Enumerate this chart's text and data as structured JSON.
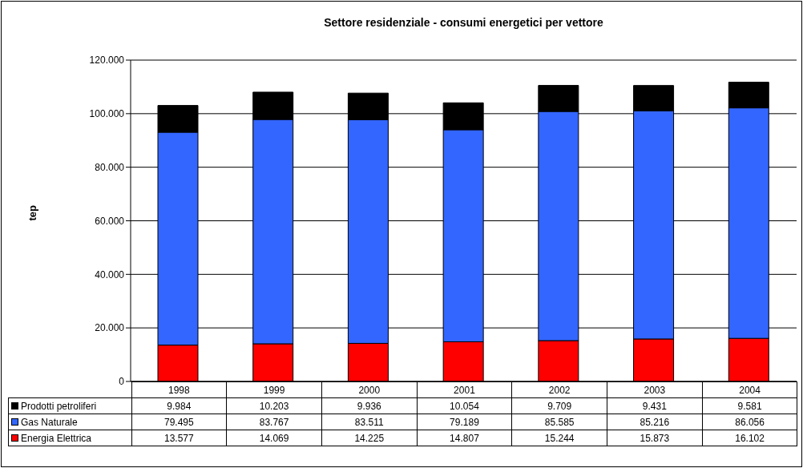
{
  "chart_data": {
    "type": "bar",
    "title": "Settore residenziale - consumi energetici per vettore",
    "ylabel": "tep",
    "categories": [
      "1998",
      "1999",
      "2000",
      "2001",
      "2002",
      "2003",
      "2004"
    ],
    "stacked": true,
    "grid": "y",
    "legend": "bottom",
    "ylim": [
      0,
      120000
    ],
    "yticks": [
      0,
      {
        "value": 20000,
        "label": "20.000"
      },
      {
        "value": 40000,
        "label": "40.000"
      },
      {
        "value": 60000,
        "label": "60.000"
      },
      {
        "value": 80000,
        "label": "80.000"
      },
      {
        "value": 100000,
        "label": "100.000"
      },
      {
        "value": 120000,
        "label": "120.000"
      }
    ],
    "series": [
      {
        "name": "Energia Elettrica",
        "color": "#ff0000",
        "values": [
          13577,
          14069,
          14225,
          14807,
          15244,
          15873,
          16102
        ],
        "value_labels": [
          "13.577",
          "14.069",
          "14.225",
          "14.807",
          "15.244",
          "15.873",
          "16.102"
        ]
      },
      {
        "name": "Gas Naturale",
        "color": "#3366ff",
        "values": [
          79495,
          83767,
          83511,
          79189,
          85585,
          85216,
          86056
        ],
        "value_labels": [
          "79.495",
          "83.767",
          "83.511",
          "79.189",
          "85.585",
          "85.216",
          "86.056"
        ]
      },
      {
        "name": "Prodotti petroliferi",
        "color": "#000000",
        "values": [
          9984,
          10203,
          9936,
          10054,
          9709,
          9431,
          9581
        ],
        "value_labels": [
          "9.984",
          "10.203",
          "9.936",
          "10.054",
          "9.709",
          "9.431",
          "9.581"
        ]
      }
    ]
  }
}
